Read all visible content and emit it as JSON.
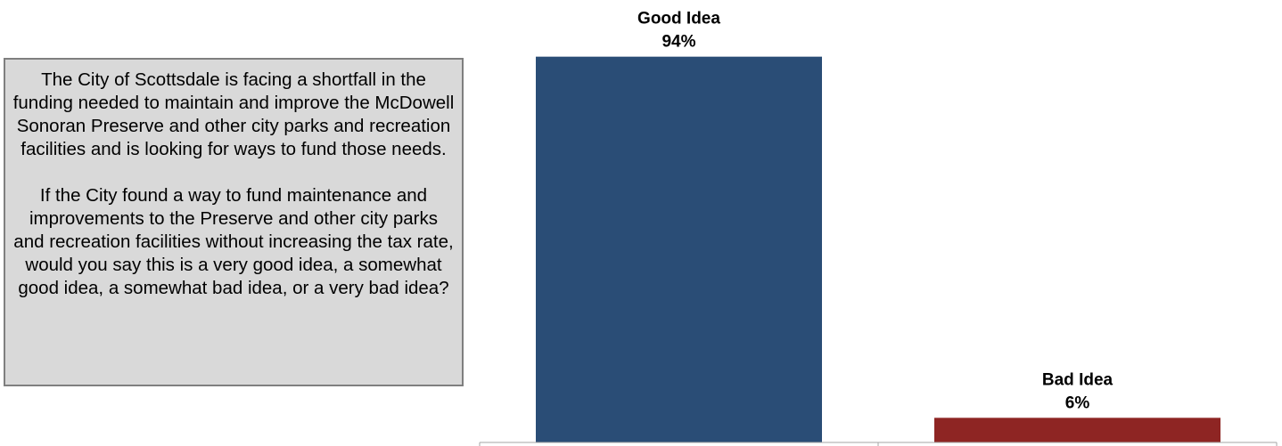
{
  "question": {
    "paragraphs": [
      "The City of Scottsdale is facing a shortfall in the funding needed to maintain and improve the McDowell Sonoran Preserve and other city parks and recreation facilities and is looking for ways to fund those needs.",
      "If the City found a way to fund maintenance and improvements to the Preserve and other city parks and recreation facilities without increasing the tax rate, would you say this is a very good idea, a somewhat good idea, a somewhat bad idea, or a very bad idea?"
    ]
  },
  "chart_data": {
    "type": "bar",
    "categories": [
      "Good Idea",
      "Bad Idea"
    ],
    "values": [
      94,
      6
    ],
    "value_labels": [
      "94%",
      "6%"
    ],
    "colors": [
      "#2a4d76",
      "#8e2523"
    ],
    "ylim": [
      0,
      100
    ],
    "grid": false,
    "legend": "none"
  }
}
